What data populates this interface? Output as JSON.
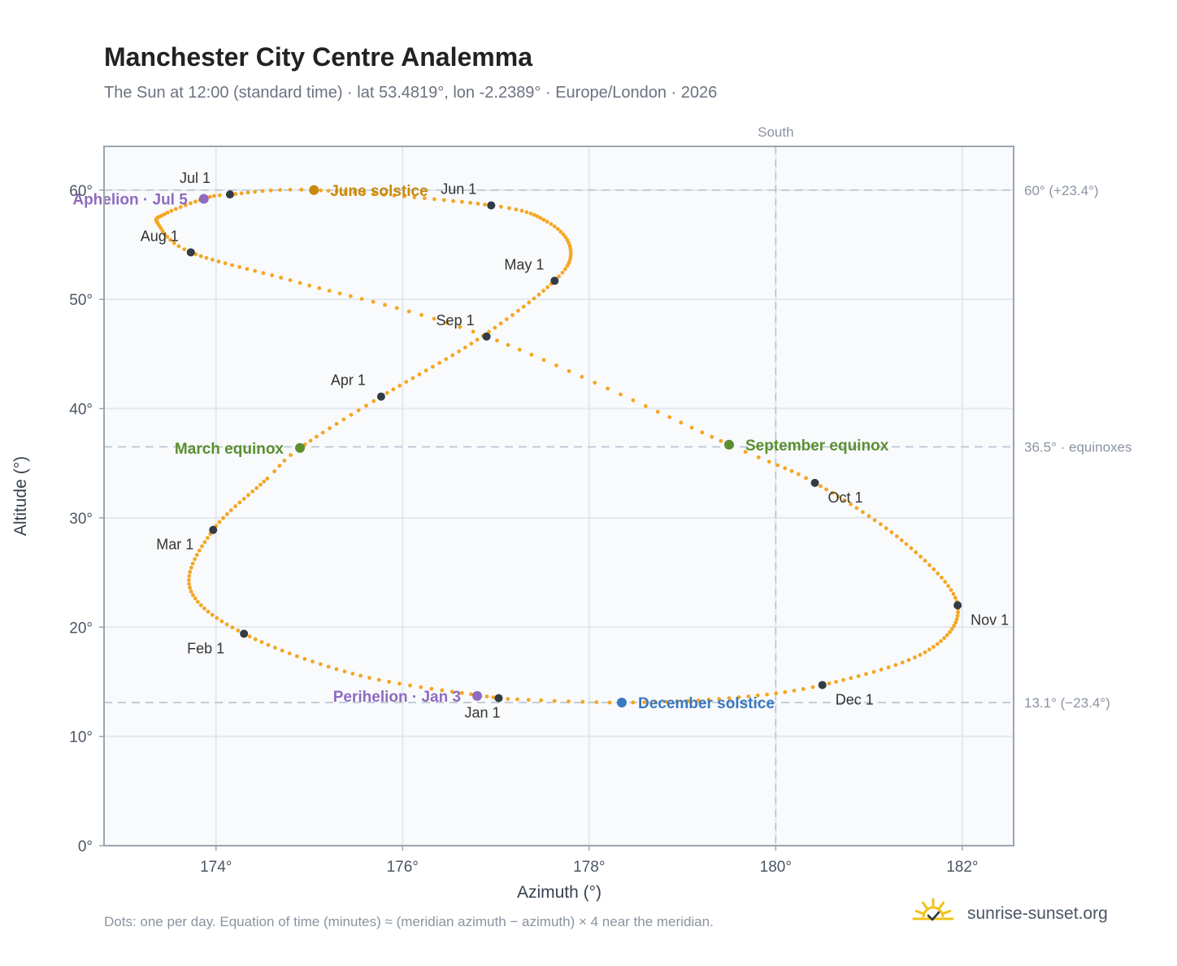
{
  "page": {
    "title": "Manchester City Centre Analemma",
    "subtitle": "The Sun at 12:00 (standard time) · lat 53.4819°, lon -2.2389° · Europe/London · 2026",
    "footnote": "Dots: one per day. Equation of time (minutes) ≈ (meridian azimuth − azimuth) × 4 near the meridian.",
    "brand": "sunrise-sunset.org"
  },
  "colors": {
    "path": "#f5a623",
    "month_marker": "#333b45",
    "equinox": "#5b8f2f",
    "june_solstice": "#c98a0a",
    "december_solstice": "#3a78bf",
    "apsis": "#8e6bbf",
    "grid": "#e3e8ee",
    "reference_line": "#b8c3cf",
    "plot_bg": "#f8fafc",
    "frame": "#9aa5b1",
    "brand_icon": "#f0c419"
  },
  "icons": {
    "brand": "sun-check-icon"
  },
  "chart_data": {
    "type": "scatter",
    "xlabel": "Azimuth (°)",
    "ylabel": "Altitude (°)",
    "xlim": [
      172.8,
      182.55
    ],
    "ylim": [
      0,
      64
    ],
    "xticks": [
      174,
      176,
      178,
      180,
      182
    ],
    "yticks": [
      0,
      10,
      20,
      30,
      40,
      50,
      60
    ],
    "meridian": {
      "x": 180,
      "label": "South"
    },
    "reference_lines": [
      {
        "y": 60,
        "label": "60° (+23.4°)"
      },
      {
        "y": 36.5,
        "label": "36.5° · equinoxes"
      },
      {
        "y": 13.1,
        "label": "13.1° (−23.4°)"
      }
    ],
    "analemma_points": [
      {
        "day": 1,
        "x": 177.03,
        "y": 13.5
      },
      {
        "day": 16,
        "x": 175.55,
        "y": 15.55
      },
      {
        "day": 32,
        "x": 174.3,
        "y": 19.4
      },
      {
        "day": 46,
        "x": 173.72,
        "y": 23.6
      },
      {
        "day": 60,
        "x": 173.97,
        "y": 28.9
      },
      {
        "day": 74,
        "x": 174.55,
        "y": 33.6
      },
      {
        "day": 79,
        "x": 174.9,
        "y": 36.4
      },
      {
        "day": 91,
        "x": 175.77,
        "y": 41.1
      },
      {
        "day": 106,
        "x": 176.8,
        "y": 46.3
      },
      {
        "day": 121,
        "x": 177.63,
        "y": 51.7
      },
      {
        "day": 131,
        "x": 177.8,
        "y": 54.6
      },
      {
        "day": 141,
        "x": 177.55,
        "y": 57.1
      },
      {
        "day": 152,
        "x": 176.95,
        "y": 58.6
      },
      {
        "day": 172,
        "x": 175.05,
        "y": 60.0
      },
      {
        "day": 182,
        "x": 174.15,
        "y": 59.6
      },
      {
        "day": 186,
        "x": 173.87,
        "y": 59.2
      },
      {
        "day": 195,
        "x": 173.45,
        "y": 57.8
      },
      {
        "day": 203,
        "x": 173.38,
        "y": 56.9
      },
      {
        "day": 213,
        "x": 173.73,
        "y": 54.3
      },
      {
        "day": 228,
        "x": 174.9,
        "y": 51.5
      },
      {
        "day": 244,
        "x": 176.9,
        "y": 46.6
      },
      {
        "day": 265,
        "x": 179.5,
        "y": 36.7
      },
      {
        "day": 274,
        "x": 180.42,
        "y": 33.2
      },
      {
        "day": 290,
        "x": 181.4,
        "y": 27.6
      },
      {
        "day": 305,
        "x": 181.95,
        "y": 22.0
      },
      {
        "day": 320,
        "x": 181.6,
        "y": 17.7
      },
      {
        "day": 335,
        "x": 180.5,
        "y": 14.7
      },
      {
        "day": 345,
        "x": 179.5,
        "y": 13.5
      },
      {
        "day": 355,
        "x": 178.35,
        "y": 13.1
      },
      {
        "day": 365,
        "x": 177.05,
        "y": 13.45
      }
    ],
    "month_markers": [
      {
        "label": "Jan 1",
        "x": 177.03,
        "y": 13.5,
        "anchor": "bottom"
      },
      {
        "label": "Feb 1",
        "x": 174.3,
        "y": 19.4,
        "anchor": "bottom-left"
      },
      {
        "label": "Mar 1",
        "x": 173.97,
        "y": 28.9,
        "anchor": "left"
      },
      {
        "label": "Apr 1",
        "x": 175.77,
        "y": 41.1,
        "anchor": "top-left"
      },
      {
        "label": "May 1",
        "x": 177.63,
        "y": 51.7,
        "anchor": "top-left"
      },
      {
        "label": "Jun 1",
        "x": 176.95,
        "y": 58.6,
        "anchor": "top-left"
      },
      {
        "label": "Jul 1",
        "x": 174.15,
        "y": 59.6,
        "anchor": "top-left"
      },
      {
        "label": "Aug 1",
        "x": 173.73,
        "y": 54.3,
        "anchor": "top-left"
      },
      {
        "label": "Sep 1",
        "x": 176.9,
        "y": 46.6,
        "anchor": "top-left"
      },
      {
        "label": "Oct 1",
        "x": 180.42,
        "y": 33.2,
        "anchor": "bottom-right"
      },
      {
        "label": "Nov 1",
        "x": 181.95,
        "y": 22.0,
        "anchor": "bottom-right"
      },
      {
        "label": "Dec 1",
        "x": 180.5,
        "y": 14.7,
        "anchor": "bottom-right"
      }
    ],
    "events": [
      {
        "label": "June solstice",
        "x": 175.05,
        "y": 60.0,
        "color_key": "june_solstice",
        "side": "right"
      },
      {
        "label": "March equinox",
        "x": 174.9,
        "y": 36.4,
        "color_key": "equinox",
        "side": "left"
      },
      {
        "label": "September equinox",
        "x": 179.5,
        "y": 36.7,
        "color_key": "equinox",
        "side": "right"
      },
      {
        "label": "December solstice",
        "x": 178.35,
        "y": 13.1,
        "color_key": "december_solstice",
        "side": "right"
      },
      {
        "label": "Aphelion · Jul 5",
        "x": 173.87,
        "y": 59.2,
        "color_key": "apsis",
        "side": "left"
      },
      {
        "label": "Perihelion · Jan 3",
        "x": 176.8,
        "y": 13.7,
        "color_key": "apsis",
        "side": "left"
      }
    ]
  }
}
